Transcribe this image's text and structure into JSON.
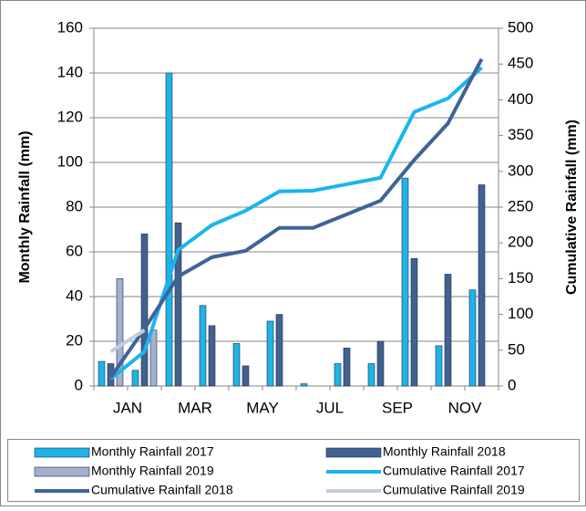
{
  "chart_data": {
    "type": "bar",
    "y_label": "Monthly Rainfall (mm)",
    "y2_label": "Cumulative Rainfall (mm)",
    "categories": [
      "JAN",
      null,
      "MAR",
      null,
      "MAY",
      null,
      "JUL",
      null,
      "SEP",
      null,
      "NOV",
      null
    ],
    "ylim": [
      0,
      160
    ],
    "yticks": [
      0,
      20,
      40,
      60,
      80,
      100,
      120,
      140,
      160
    ],
    "y2lim": [
      0,
      500
    ],
    "y2ticks": [
      0,
      50,
      100,
      150,
      200,
      250,
      300,
      350,
      400,
      450,
      500
    ],
    "legend": "bottom",
    "series": [
      {
        "name": "Monthly Rainfall 2017",
        "type": "bar",
        "color": "#1fb3e6",
        "values": [
          11,
          7,
          140,
          36,
          19,
          29,
          1,
          10,
          10,
          93,
          18,
          43
        ]
      },
      {
        "name": "Monthly Rainfall 2018",
        "type": "bar",
        "color": "#41618f",
        "values": [
          10,
          68,
          73,
          27,
          9,
          32,
          0,
          17,
          20,
          57,
          50,
          90
        ]
      },
      {
        "name": "Monthly Rainfall 2019",
        "type": "bar",
        "color": "#a4b0cc",
        "values": [
          48,
          25,
          null,
          null,
          null,
          null,
          null,
          null,
          null,
          null,
          null,
          null
        ]
      },
      {
        "name": "Cumulative Rainfall 2017",
        "type": "line",
        "axis": "y2",
        "color": "#1ab5ee",
        "values": [
          10,
          48,
          190,
          225,
          245,
          272,
          273,
          282,
          291,
          383,
          402,
          445
        ]
      },
      {
        "name": "Cumulative Rainfall 2018",
        "type": "line",
        "axis": "y2",
        "color": "#3f6398",
        "values": [
          12,
          80,
          153,
          180,
          189,
          221,
          221,
          240,
          259,
          316,
          367,
          457
        ]
      },
      {
        "name": "Cumulative Rainfall 2019",
        "type": "line",
        "axis": "y2",
        "color": "#c3cce0",
        "values": [
          48,
          78,
          null,
          null,
          null,
          null,
          null,
          null,
          null,
          null,
          null,
          null
        ]
      }
    ]
  }
}
